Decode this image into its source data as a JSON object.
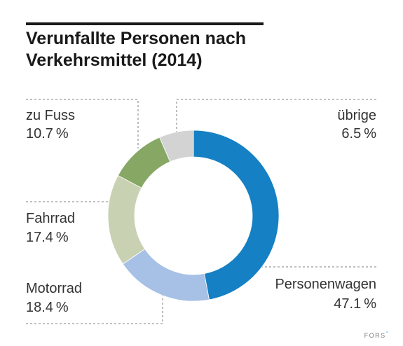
{
  "chart_data": {
    "type": "donut",
    "title_lines": [
      "Verunfallte Personen nach",
      "Verkehrsmittel (2014)"
    ],
    "unit": "%",
    "slices": [
      {
        "name": "Personenwagen",
        "value": 47.1,
        "value_label": "47.1 %",
        "color": "#1580c4"
      },
      {
        "name": "Motorrad",
        "value": 18.4,
        "value_label": "18.4 %",
        "color": "#a6c0e6"
      },
      {
        "name": "Fahrrad",
        "value": 17.4,
        "value_label": "17.4 %",
        "color": "#c8d2b3"
      },
      {
        "name": "zu Fuss",
        "value": 10.7,
        "value_label": "10.7 %",
        "color": "#87a765"
      },
      {
        "name": "übrige",
        "value": 6.5,
        "value_label": "6.5 %",
        "color": "#d3d3d3"
      }
    ],
    "start_angle_deg": 0,
    "direction": "clockwise"
  },
  "footer": {
    "brand": "FORS",
    "brand_mark": "°"
  }
}
